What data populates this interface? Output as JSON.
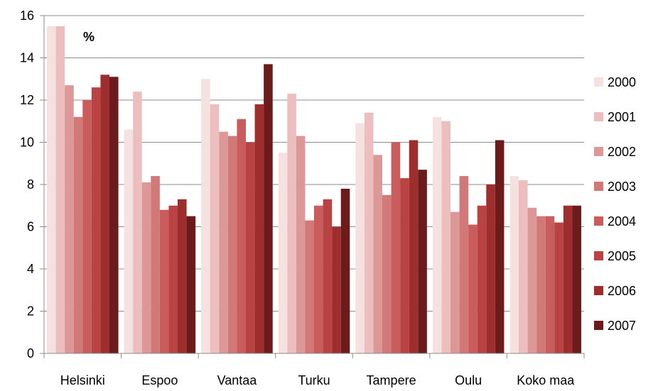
{
  "chart_data": {
    "type": "bar",
    "title": "",
    "unit_label": "%",
    "xlabel": "",
    "ylabel": "",
    "ylim": [
      0,
      16
    ],
    "yticks": [
      "0",
      "2",
      "4",
      "6",
      "8",
      "10",
      "12",
      "14",
      "16"
    ],
    "grid": true,
    "legend_position": "right",
    "categories": [
      "Helsinki",
      "Espoo",
      "Vantaa",
      "Turku",
      "Tampere",
      "Oulu",
      "Koko maa"
    ],
    "series": [
      {
        "name": "2000",
        "color": "#f6e1e1",
        "values": [
          15.5,
          10.6,
          13.0,
          9.5,
          10.9,
          11.2,
          8.4
        ]
      },
      {
        "name": "2001",
        "color": "#edbebe",
        "values": [
          15.5,
          12.4,
          11.8,
          12.3,
          11.4,
          11.0,
          8.2
        ]
      },
      {
        "name": "2002",
        "color": "#dc9797",
        "values": [
          12.7,
          8.1,
          10.5,
          10.3,
          9.4,
          6.7,
          6.9
        ]
      },
      {
        "name": "2003",
        "color": "#d17878",
        "values": [
          11.2,
          8.4,
          10.3,
          6.3,
          7.5,
          8.4,
          6.5
        ]
      },
      {
        "name": "2004",
        "color": "#c95c5c",
        "values": [
          12.0,
          6.8,
          11.1,
          7.0,
          10.0,
          6.1,
          6.5
        ]
      },
      {
        "name": "2005",
        "color": "#b94343",
        "values": [
          12.6,
          7.0,
          10.0,
          7.3,
          8.3,
          7.0,
          6.2
        ]
      },
      {
        "name": "2006",
        "color": "#9e2e2e",
        "values": [
          13.2,
          7.3,
          11.8,
          6.0,
          10.1,
          8.0,
          7.0
        ]
      },
      {
        "name": "2007",
        "color": "#6d1a1a",
        "values": [
          13.1,
          6.5,
          13.7,
          7.8,
          8.7,
          10.1,
          7.0
        ]
      }
    ]
  }
}
